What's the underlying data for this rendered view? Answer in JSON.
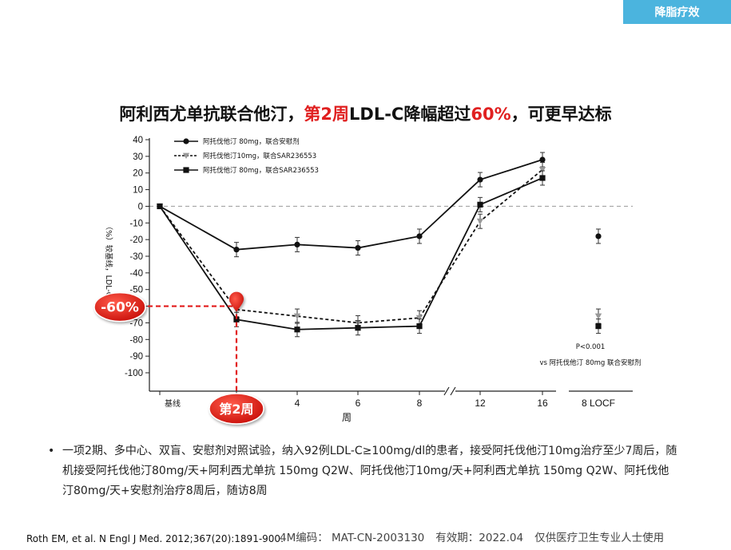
{
  "header": {
    "tag": "降脂疗效"
  },
  "title": {
    "part1": "阿利西尤单抗联合他汀，",
    "highlight1": "第2周",
    "part2": "LDL-C降幅超过",
    "highlight2": "60%",
    "part3": "，可更早达标"
  },
  "callouts": {
    "percent": "-60%",
    "week": "第2周"
  },
  "chart_data": {
    "type": "line",
    "title": "",
    "xlabel": "周",
    "ylabel": "（%）较基线，LDL-C降幅",
    "ylim": [
      -100,
      40
    ],
    "yticks": [
      40,
      30,
      20,
      10,
      0,
      -10,
      -20,
      -30,
      -40,
      -50,
      -60,
      -70,
      -80,
      -90,
      -100
    ],
    "categories": [
      "基线",
      "2",
      "4",
      "6",
      "8",
      "12",
      "16",
      "8 LOCF"
    ],
    "series": [
      {
        "name": "阿托伐他汀 80mg，联合安慰剂",
        "style": "solid-circle",
        "color": "#111111",
        "values": [
          0,
          -26,
          -23,
          -25,
          -18,
          16,
          28,
          -18
        ]
      },
      {
        "name": "阿托伐他汀10mg，联合SAR236553",
        "style": "dotted-triangle",
        "color": "#999999",
        "values": [
          0,
          -62,
          -66,
          -70,
          -67,
          -9,
          22,
          -66
        ]
      },
      {
        "name": "阿托伐他汀 80mg，联合SAR236553",
        "style": "solid-square",
        "color": "#111111",
        "values": [
          0,
          -68,
          -74,
          -73,
          -72,
          1,
          17,
          -72
        ]
      }
    ],
    "annotations": [
      "P<0.001",
      "vs 阿托伐他汀 80mg 联合安慰剂"
    ]
  },
  "bullet": "一项2期、多中心、双盲、安慰剂对照试验，纳入92例LDL-C≥100mg/dl的患者，接受阿托伐他汀10mg治疗至少7周后，随机接受阿托伐他汀80mg/天+阿利西尤单抗 150mg Q2W、阿托伐他汀10mg/天+阿利西尤单抗 150mg Q2W、阿托伐他汀80mg/天+安慰剂治疗8周后，随访8周",
  "footer": {
    "reference": "Roth EM, et al. N Engl J Med. 2012;367(20):1891-900.",
    "code": "4M编码：  MAT-CN-2003130",
    "validity": "有效期：2022.04",
    "notice": "仅供医疗卫生专业人士使用"
  }
}
